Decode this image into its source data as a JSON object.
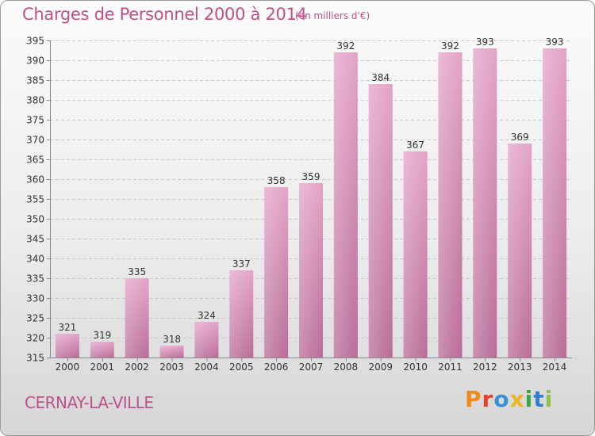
{
  "chart_data": {
    "type": "bar",
    "title": "Charges de Personnel 2000 à 2014",
    "subtitle": "(en milliers d'€)",
    "categories": [
      "2000",
      "2001",
      "2002",
      "2003",
      "2004",
      "2005",
      "2006",
      "2007",
      "2008",
      "2009",
      "2010",
      "2011",
      "2012",
      "2013",
      "2014"
    ],
    "values": [
      321,
      319,
      335,
      318,
      324,
      337,
      358,
      359,
      392,
      384,
      367,
      392,
      393,
      369,
      393
    ],
    "ylim": [
      315,
      395
    ],
    "yticks": [
      315,
      320,
      325,
      330,
      335,
      340,
      345,
      350,
      355,
      360,
      365,
      370,
      375,
      380,
      385,
      390,
      395
    ],
    "grid": true,
    "bar_color": "#d98cb8"
  },
  "footer": {
    "city": "CERNAY-LA-VILLE",
    "brand_letters": [
      "P",
      "r",
      "o",
      "x",
      "i",
      "t",
      "i"
    ],
    "brand_colors": [
      "#f08a1c",
      "#e5412c",
      "#3b8fd6",
      "#f0b323",
      "#3aa64a",
      "#2f7fd0",
      "#8bc34a"
    ]
  }
}
